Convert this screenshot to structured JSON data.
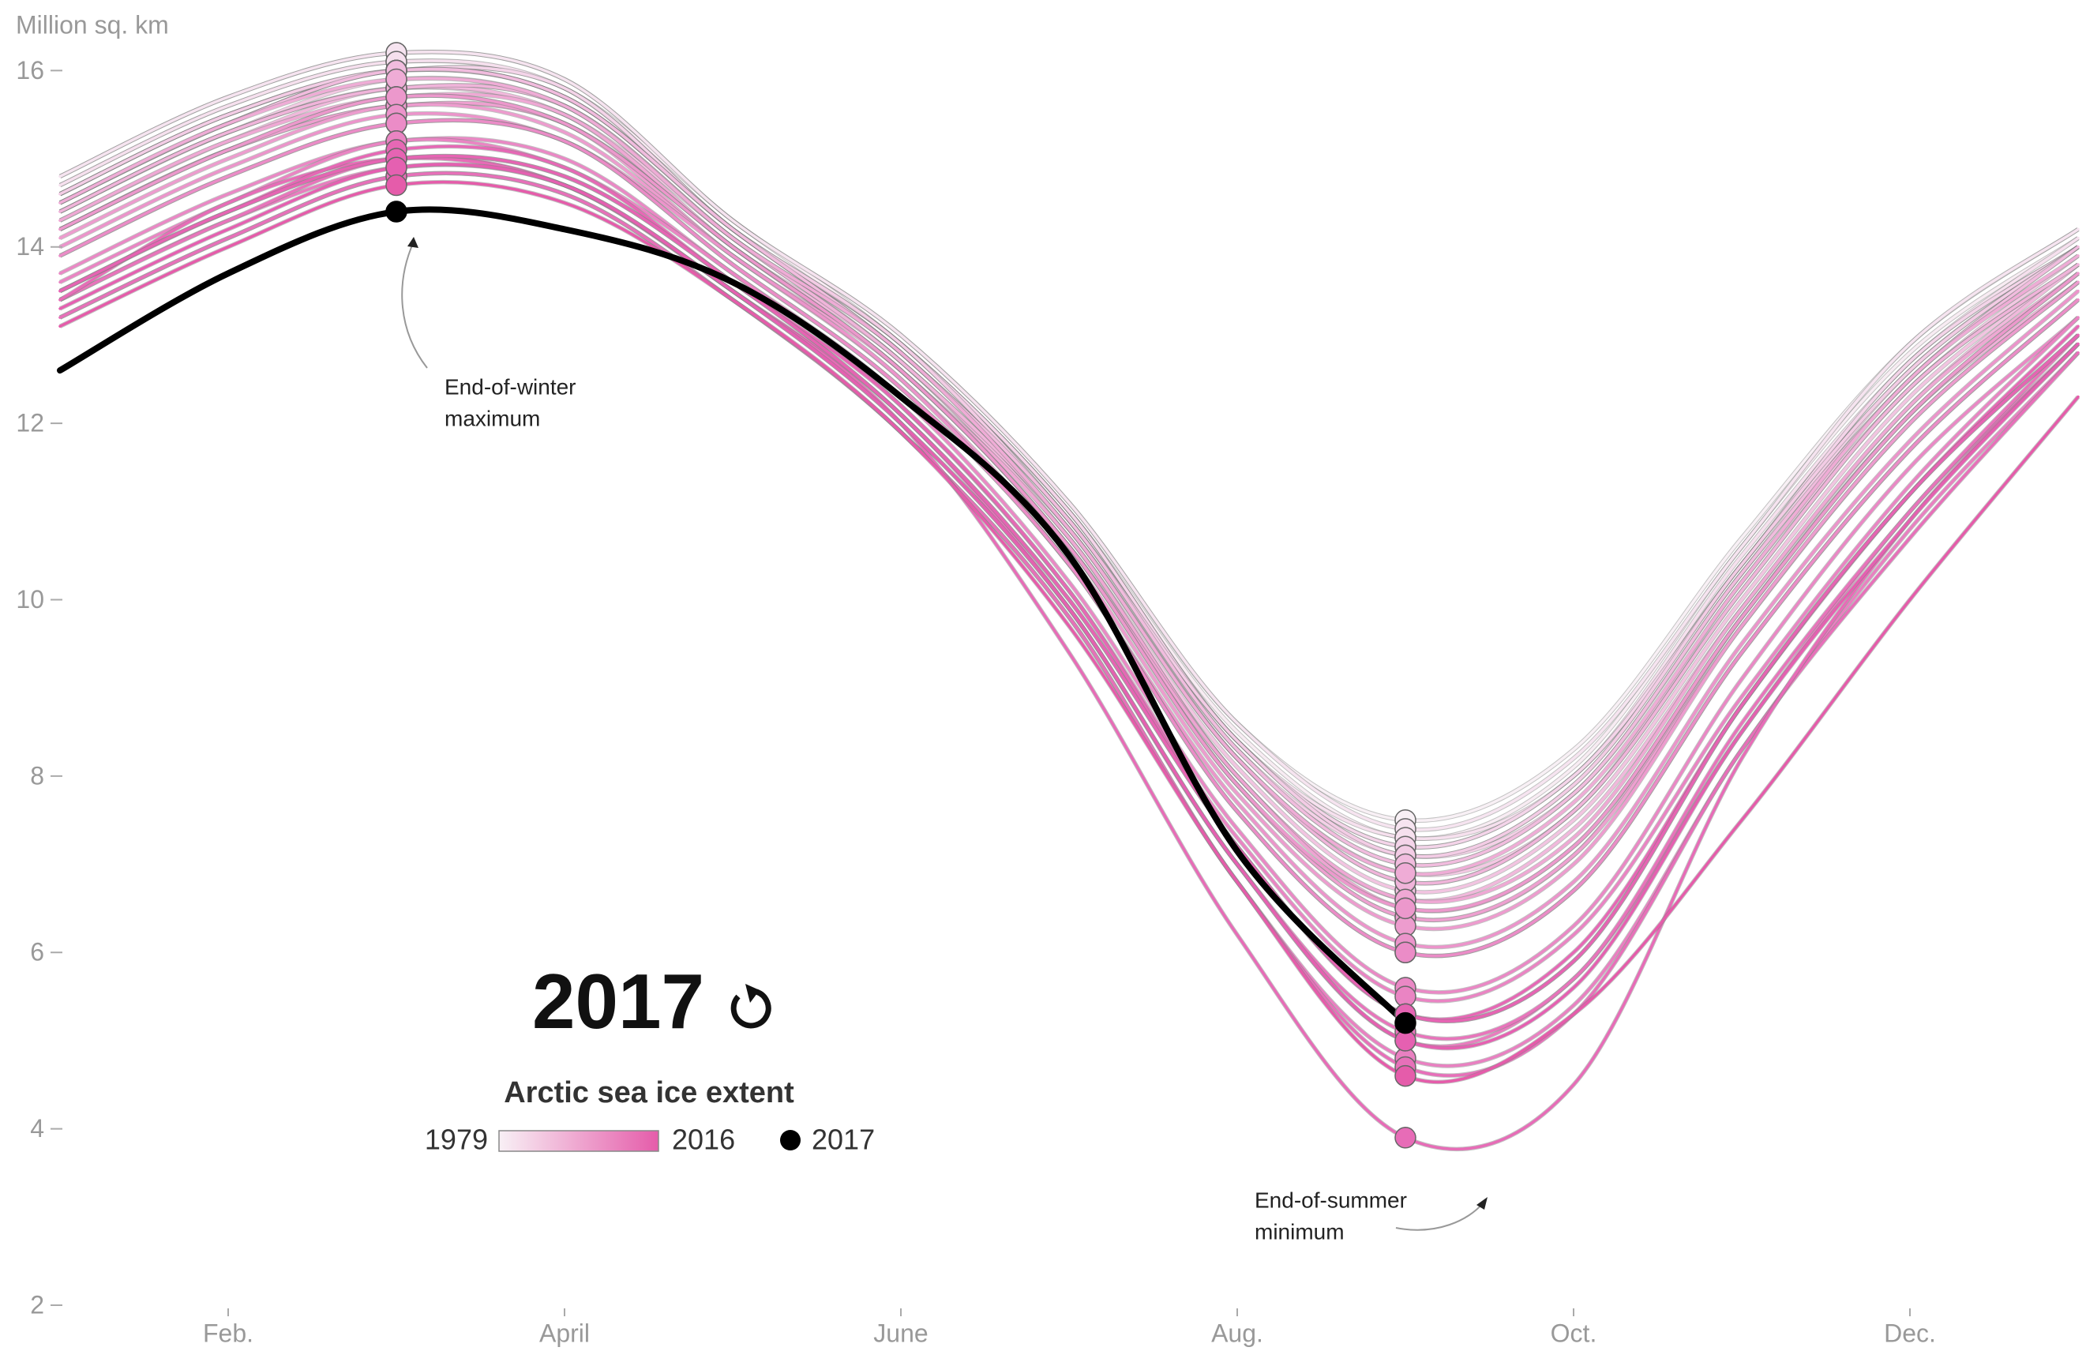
{
  "chart_data": {
    "type": "line",
    "y_label": "Million sq. km",
    "categories": [
      null,
      "Feb.",
      null,
      "April",
      null,
      "June",
      null,
      "Aug.",
      null,
      "Oct.",
      null,
      "Dec.",
      null
    ],
    "ylim": [
      2,
      16.8
    ],
    "yticks": [
      2,
      4,
      6,
      8,
      10,
      12,
      14,
      16
    ],
    "grid": false,
    "legend": {
      "title": "Arctic sea ice extent"
    },
    "annotations": [
      [
        "End-of-winter",
        "maximum"
      ],
      [
        "End-of-summer",
        "minimum"
      ]
    ],
    "series": [
      {
        "name": "1979",
        "color": "#f8f0f5",
        "values": [
          14.8,
          15.7,
          16.2,
          15.9,
          14.3,
          13.0,
          11.1,
          8.6,
          7.5,
          8.3,
          10.7,
          12.9,
          14.2
        ]
      },
      {
        "color": "#f8ecf3",
        "values": [
          14.7,
          15.6,
          16.1,
          15.8,
          14.3,
          12.9,
          11.0,
          8.5,
          7.3,
          8.1,
          10.6,
          12.8,
          14.1
        ]
      },
      {
        "color": "#f7e8f1",
        "values": [
          14.6,
          15.5,
          16.0,
          15.8,
          14.2,
          12.9,
          11.0,
          8.4,
          7.2,
          8.0,
          10.4,
          12.7,
          14.0
        ]
      },
      {
        "color": "#f6e4f0",
        "values": [
          14.8,
          15.7,
          16.2,
          15.9,
          14.3,
          13.0,
          11.1,
          8.6,
          7.4,
          8.2,
          10.6,
          12.9,
          14.2
        ]
      },
      {
        "color": "#f6e0ee",
        "values": [
          14.7,
          15.6,
          16.1,
          15.8,
          14.2,
          12.9,
          11.0,
          8.4,
          7.3,
          8.0,
          10.5,
          12.7,
          14.1
        ]
      },
      {
        "color": "#f5dcec",
        "values": [
          14.5,
          15.4,
          16.0,
          15.7,
          14.2,
          12.8,
          10.9,
          8.3,
          7.0,
          7.8,
          10.3,
          12.5,
          14.0
        ]
      },
      {
        "color": "#f5d8eb",
        "values": [
          14.6,
          15.5,
          16.0,
          15.7,
          14.2,
          12.9,
          10.9,
          8.4,
          7.1,
          7.9,
          10.4,
          12.6,
          14.0
        ]
      },
      {
        "color": "#f4d4e9",
        "values": [
          14.6,
          15.5,
          16.0,
          15.8,
          14.2,
          12.9,
          11.0,
          8.4,
          7.2,
          8.0,
          10.4,
          12.7,
          14.0
        ]
      },
      {
        "color": "#f4d0e7",
        "values": [
          14.5,
          15.4,
          16.0,
          15.7,
          14.2,
          12.8,
          10.9,
          8.3,
          7.1,
          7.8,
          10.3,
          12.6,
          14.0
        ]
      },
      {
        "color": "#f3cce5",
        "values": [
          14.6,
          15.5,
          16.0,
          15.7,
          14.2,
          12.9,
          10.9,
          8.4,
          7.1,
          7.9,
          10.4,
          12.6,
          14.0
        ]
      },
      {
        "color": "#f3c8e3",
        "values": [
          14.4,
          15.3,
          15.9,
          15.6,
          14.1,
          12.8,
          10.8,
          8.2,
          6.9,
          7.6,
          10.2,
          12.4,
          13.9
        ]
      },
      {
        "color": "#f2c4e1",
        "values": [
          14.4,
          15.3,
          15.8,
          15.5,
          14.1,
          12.7,
          10.7,
          8.1,
          6.7,
          7.5,
          10.0,
          12.3,
          13.8
        ]
      },
      {
        "color": "#f2c0df",
        "values": [
          14.4,
          15.3,
          15.8,
          15.6,
          14.1,
          12.7,
          10.8,
          8.2,
          6.8,
          7.6,
          10.1,
          12.4,
          13.8
        ]
      },
      {
        "color": "#f1bcde",
        "values": [
          14.5,
          15.4,
          16.0,
          15.7,
          14.2,
          12.8,
          10.9,
          8.3,
          7.0,
          7.8,
          10.3,
          12.5,
          14.0
        ]
      },
      {
        "color": "#f1b8dc",
        "values": [
          14.3,
          15.2,
          15.8,
          15.5,
          14.0,
          12.7,
          10.7,
          8.0,
          6.6,
          7.4,
          9.9,
          12.2,
          13.8
        ]
      },
      {
        "color": "#f0b4da",
        "values": [
          14.4,
          15.3,
          15.8,
          15.6,
          14.1,
          12.7,
          10.8,
          8.2,
          6.8,
          7.6,
          10.1,
          12.4,
          13.8
        ]
      },
      {
        "color": "#f0b0d8",
        "values": [
          14.2,
          15.1,
          15.6,
          15.4,
          14.0,
          12.6,
          10.6,
          7.9,
          6.4,
          7.1,
          9.8,
          12.1,
          13.6
        ]
      },
      {
        "color": "#efacd6",
        "values": [
          14.5,
          15.4,
          15.9,
          15.6,
          14.1,
          12.8,
          10.8,
          8.2,
          6.9,
          7.7,
          10.2,
          12.5,
          13.9
        ]
      },
      {
        "color": "#efa8d4",
        "values": [
          14.3,
          15.2,
          15.7,
          15.5,
          14.0,
          12.6,
          10.7,
          8.0,
          6.6,
          7.3,
          9.9,
          12.2,
          13.7
        ]
      },
      {
        "color": "#eea4d2",
        "values": [
          14.2,
          15.1,
          15.7,
          15.4,
          14.0,
          12.6,
          10.6,
          8.0,
          6.5,
          7.2,
          9.8,
          12.1,
          13.7
        ]
      },
      {
        "color": "#eea0d0",
        "values": [
          14.2,
          15.1,
          15.6,
          15.4,
          13.9,
          12.6,
          10.6,
          7.9,
          6.4,
          7.1,
          9.7,
          12.0,
          13.6
        ]
      },
      {
        "color": "#ed9cce",
        "values": [
          14.1,
          15.0,
          15.6,
          15.3,
          13.9,
          12.5,
          10.5,
          7.8,
          6.3,
          7.0,
          9.7,
          12.0,
          13.6
        ]
      },
      {
        "color": "#ec98cc",
        "values": [
          14.2,
          15.1,
          15.7,
          15.4,
          14.0,
          12.6,
          10.6,
          7.9,
          6.5,
          7.2,
          9.8,
          12.1,
          13.7
        ]
      },
      {
        "color": "#ec94cb",
        "values": [
          14.0,
          14.9,
          15.5,
          15.2,
          13.9,
          12.5,
          10.4,
          7.7,
          6.1,
          6.8,
          9.5,
          11.8,
          13.5
        ]
      },
      {
        "color": "#eb90c9",
        "values": [
          13.9,
          14.8,
          15.4,
          15.2,
          13.8,
          12.4,
          10.4,
          7.6,
          6.0,
          6.7,
          9.4,
          11.7,
          13.4
        ]
      },
      {
        "color": "#eb8cc7",
        "values": [
          13.9,
          14.8,
          15.4,
          15.2,
          13.8,
          12.4,
          10.4,
          7.6,
          6.0,
          6.7,
          9.4,
          11.7,
          13.4
        ]
      },
      {
        "color": "#ea88c5",
        "values": [
          13.7,
          14.6,
          15.2,
          15.0,
          13.7,
          12.3,
          10.2,
          7.4,
          5.6,
          6.3,
          9.1,
          11.5,
          13.2
        ]
      },
      {
        "color": "#ea84c3",
        "values": [
          13.6,
          14.5,
          15.2,
          14.9,
          13.7,
          12.2,
          10.1,
          7.3,
          5.5,
          6.2,
          8.9,
          11.3,
          13.2
        ]
      },
      {
        "color": "#e980c1",
        "values": [
          13.2,
          14.1,
          14.8,
          14.6,
          13.4,
          11.9,
          9.8,
          6.8,
          4.8,
          5.4,
          8.3,
          10.8,
          12.8
        ]
      },
      {
        "color": "#e97cbf",
        "values": [
          13.4,
          14.3,
          14.9,
          14.7,
          13.5,
          12.0,
          9.9,
          7.0,
          5.0,
          5.7,
          8.5,
          11.0,
          12.9
        ]
      },
      {
        "color": "#e878bd",
        "values": [
          13.5,
          14.4,
          15.0,
          14.8,
          13.6,
          12.1,
          10.0,
          7.2,
          5.3,
          5.9,
          8.8,
          11.2,
          13.0
        ]
      },
      {
        "color": "#e874bb",
        "values": [
          13.4,
          14.3,
          15.0,
          14.7,
          13.5,
          12.1,
          9.9,
          7.0,
          5.1,
          5.7,
          8.6,
          11.0,
          13.0
        ]
      },
      {
        "color": "#e770b9",
        "values": [
          13.2,
          14.1,
          14.8,
          14.6,
          13.4,
          11.9,
          9.8,
          6.8,
          4.7,
          5.3,
          8.3,
          10.7,
          12.8
        ]
      },
      {
        "color": "#e76cb7",
        "values": [
          13.4,
          14.5,
          15.0,
          14.7,
          13.5,
          12.0,
          9.4,
          6.2,
          3.9,
          4.5,
          8.2,
          10.9,
          12.9
        ]
      },
      {
        "color": "#e668b5",
        "values": [
          13.5,
          14.4,
          15.1,
          14.9,
          13.6,
          12.2,
          10.1,
          7.2,
          5.3,
          6.0,
          8.8,
          11.2,
          13.1
        ]
      },
      {
        "color": "#e664b3",
        "values": [
          13.5,
          14.4,
          15.0,
          14.8,
          13.6,
          12.1,
          10.0,
          7.2,
          5.3,
          5.9,
          8.8,
          11.2,
          13.0
        ]
      },
      {
        "color": "#e560b1",
        "values": [
          13.3,
          14.2,
          14.9,
          14.7,
          13.5,
          12.0,
          9.9,
          7.0,
          5.0,
          5.6,
          8.5,
          10.9,
          12.9
        ]
      },
      {
        "name": "2016",
        "color": "#e55caa",
        "values": [
          13.1,
          14.0,
          14.7,
          14.5,
          13.4,
          11.9,
          9.7,
          6.8,
          4.6,
          5.3,
          7.5,
          10.0,
          12.3
        ]
      },
      {
        "name": "2017",
        "color": "#000000",
        "values": [
          12.6,
          13.7,
          14.4,
          14.2,
          13.6,
          12.3,
          10.5,
          7.15,
          5.2,
          null,
          null,
          null,
          null
        ]
      }
    ]
  }
}
